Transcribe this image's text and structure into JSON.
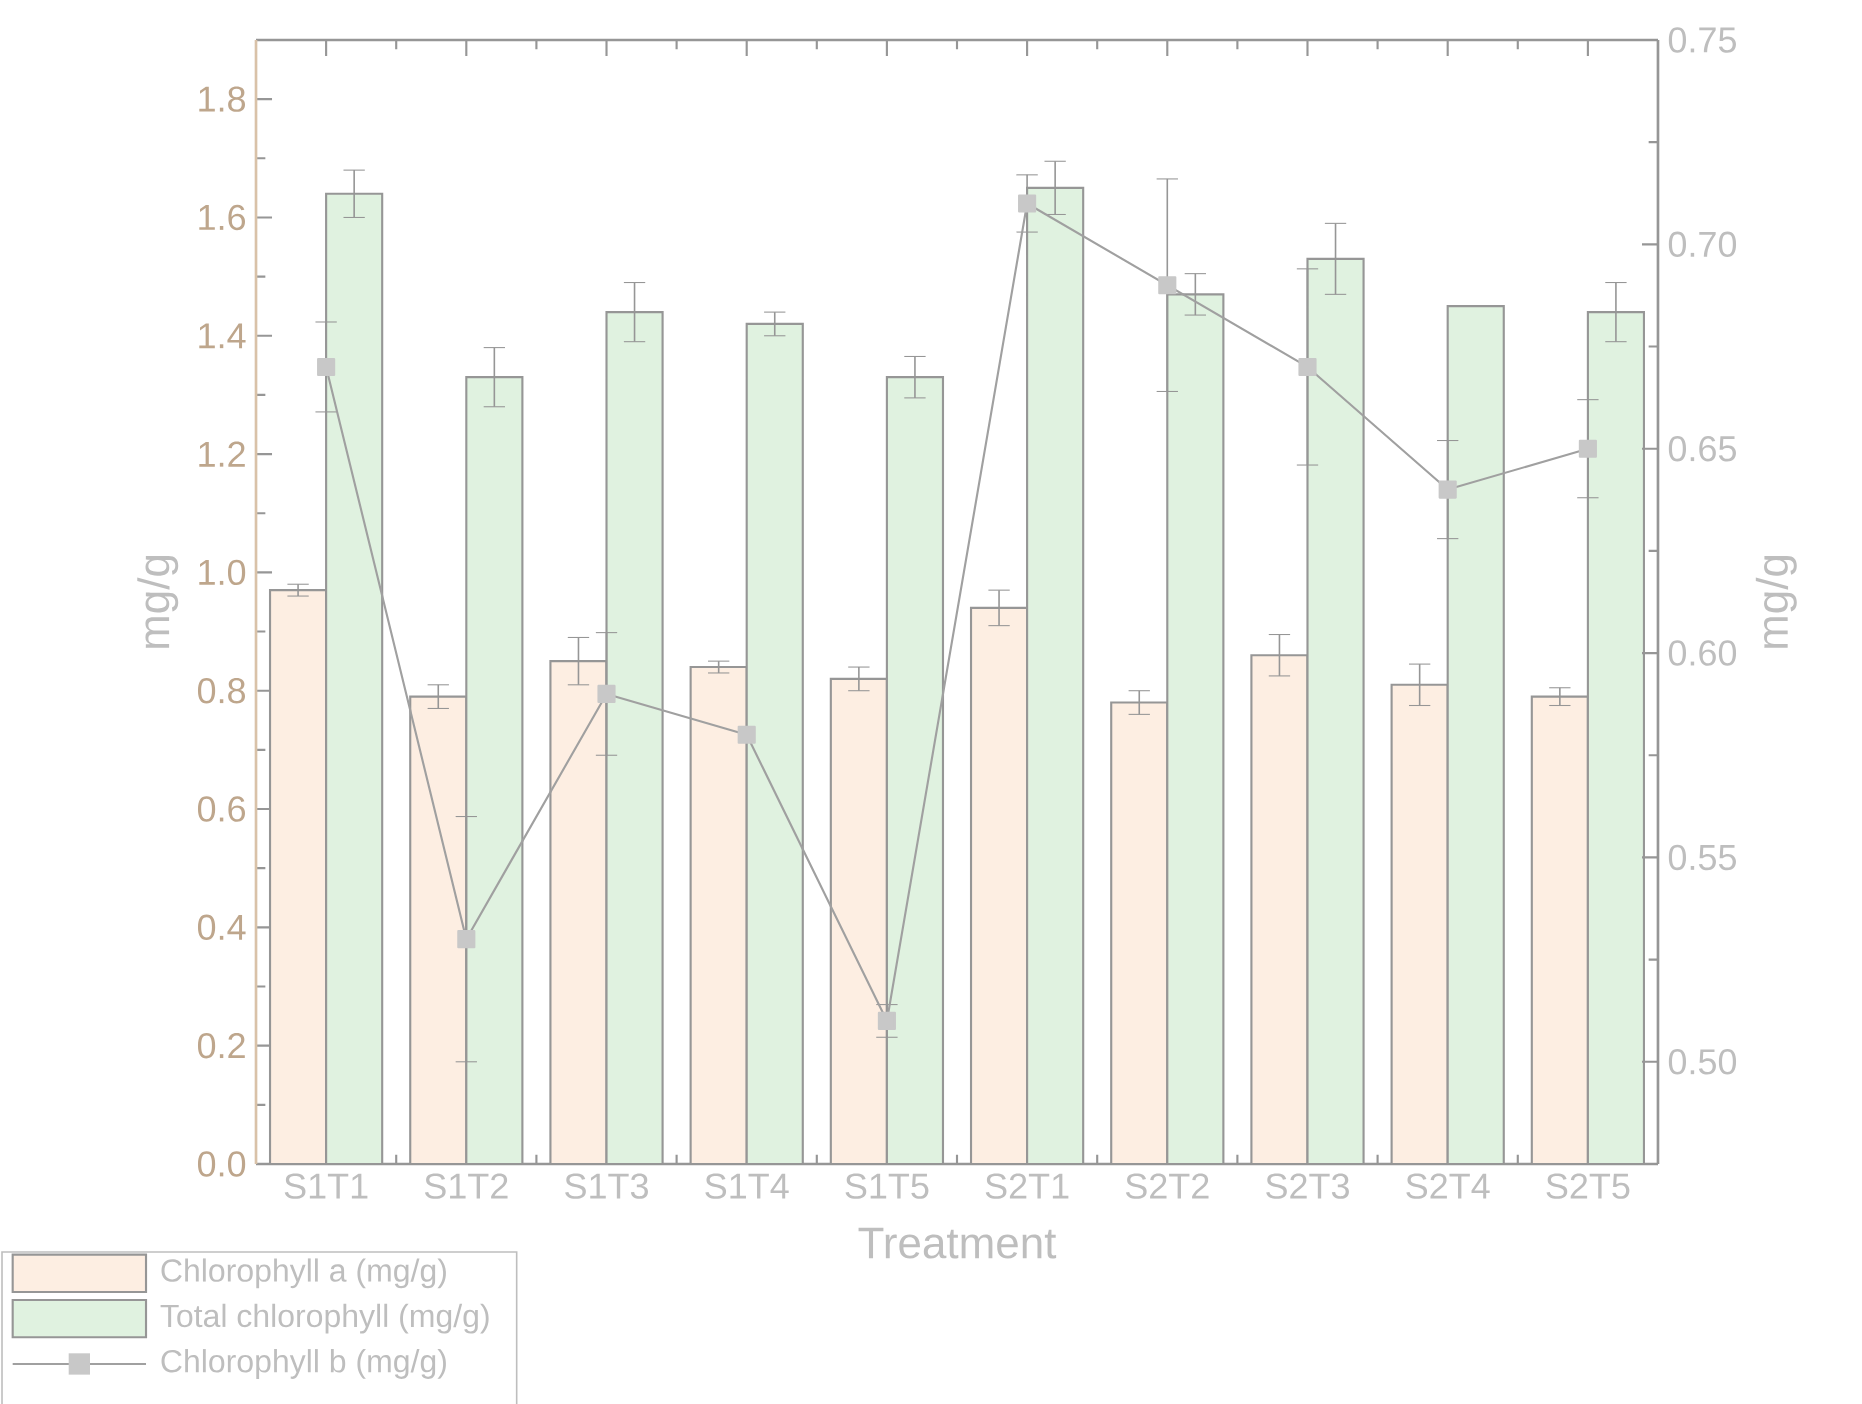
{
  "chart_data": {
    "type": "bar",
    "xlabel": "Treatment",
    "ylabel": "mg/g",
    "y2label": "mg/g",
    "categories": [
      "S1T1",
      "S1T2",
      "S1T3",
      "S1T4",
      "S1T5",
      "S2T1",
      "S2T2",
      "S2T3",
      "S2T4",
      "S2T5"
    ],
    "series": [
      {
        "name": "Chlorophyll a (mg/g)",
        "color": "#fdeee2",
        "values": [
          0.97,
          0.79,
          0.85,
          0.84,
          0.82,
          0.94,
          0.78,
          0.86,
          0.81,
          0.79
        ],
        "errors": [
          0.01,
          0.02,
          0.04,
          0.01,
          0.02,
          0.03,
          0.02,
          0.035,
          0.035,
          0.015
        ]
      },
      {
        "name": "Total chlorophyll (mg/g)",
        "color": "#e0f2e0",
        "values": [
          1.64,
          1.33,
          1.44,
          1.42,
          1.33,
          1.65,
          1.47,
          1.53,
          1.45,
          1.44
        ],
        "errors": [
          0.04,
          0.05,
          0.05,
          0.02,
          0.035,
          0.045,
          0.035,
          0.06,
          null,
          0.05
        ]
      },
      {
        "name": "Chlorophyll b (mg/g)",
        "type": "line",
        "axis": "y2",
        "color": "#a0a0a0",
        "marker": "square",
        "values": [
          0.67,
          0.53,
          0.59,
          0.58,
          0.51,
          0.71,
          0.69,
          0.67,
          0.64,
          0.65
        ],
        "errors": [
          0.011,
          0.03,
          0.015,
          null,
          0.004,
          0.007,
          0.026,
          0.024,
          0.012,
          0.012
        ]
      }
    ],
    "ylim": [
      0,
      1.9
    ],
    "yticks": [
      {
        "value": 0,
        "label": "0.0"
      },
      0.2,
      0.4,
      0.6,
      0.8,
      {
        "value": 1,
        "label": "1.0"
      },
      1.2,
      1.4,
      1.6,
      1.8
    ],
    "y2lim": [
      0.475,
      0.75
    ],
    "y2ticks": [
      {
        "value": 0.5,
        "label": "0.50"
      },
      0.55,
      {
        "value": 0.6,
        "label": "0.60"
      },
      0.65,
      {
        "value": 0.7,
        "label": "0.70"
      },
      0.75
    ],
    "grid": false,
    "legend": "bottom left"
  }
}
